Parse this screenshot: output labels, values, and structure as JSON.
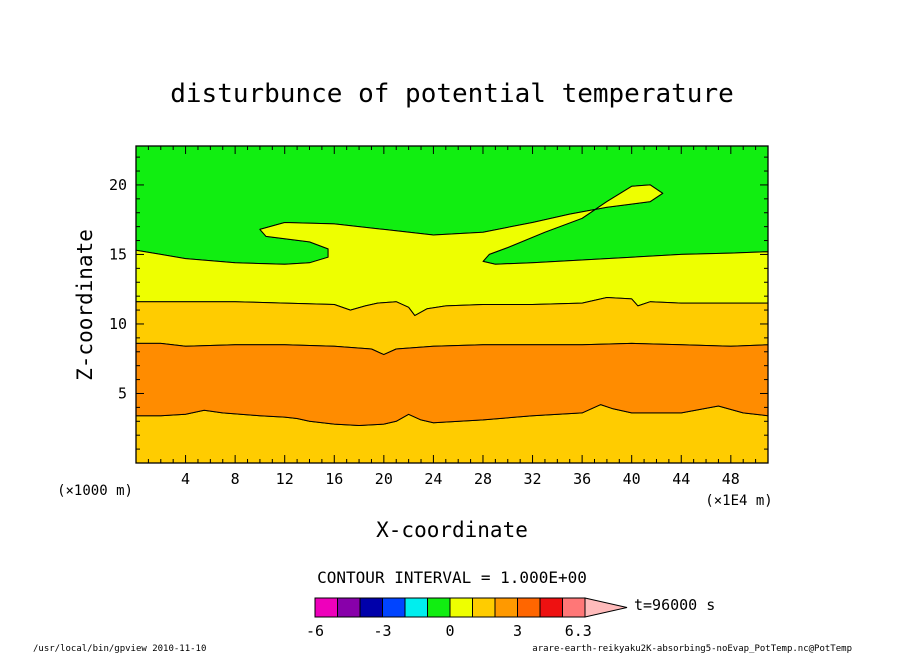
{
  "chart_data": {
    "type": "contour",
    "title": "disturbunce of potential temperature",
    "xlabel": "X-coordinate",
    "ylabel": "Z-coordinate",
    "x_unit_left": "(×1000 m)",
    "x_unit_right": "(×1E4 m)",
    "xlim": [
      0,
      51
    ],
    "ylim": [
      0,
      22.8
    ],
    "x_ticks": [
      4,
      8,
      12,
      16,
      20,
      24,
      28,
      32,
      36,
      40,
      44,
      48
    ],
    "y_ticks": [
      5,
      10,
      15,
      20
    ],
    "contour_interval": "CONTOUR INTERVAL = 1.000E+00",
    "time_label": "t=96000 s",
    "regions": [
      {
        "level_range": [
          -1,
          0
        ],
        "color": "#11ee11",
        "boundary": [
          [
            0,
            22.8
          ],
          [
            51,
            22.8
          ],
          [
            51,
            15.2
          ],
          [
            48,
            15.1
          ],
          [
            44,
            15.0
          ],
          [
            40,
            14.8
          ],
          [
            36,
            14.6
          ],
          [
            32,
            14.4
          ],
          [
            29,
            14.3
          ],
          [
            28,
            14.5
          ],
          [
            28.5,
            15.0
          ],
          [
            30,
            15.5
          ],
          [
            33,
            16.6
          ],
          [
            36,
            17.6
          ],
          [
            38,
            18.8
          ],
          [
            40,
            19.9
          ],
          [
            41.5,
            20.0
          ],
          [
            42.5,
            19.4
          ],
          [
            41.5,
            18.8
          ],
          [
            38,
            18.4
          ],
          [
            35,
            17.9
          ],
          [
            32,
            17.3
          ],
          [
            28,
            16.6
          ],
          [
            24,
            16.4
          ],
          [
            20,
            16.8
          ],
          [
            16,
            17.2
          ],
          [
            12,
            17.3
          ],
          [
            10,
            16.8
          ],
          [
            10.5,
            16.3
          ],
          [
            14,
            15.9
          ],
          [
            15.5,
            15.4
          ],
          [
            15.5,
            14.8
          ],
          [
            14,
            14.4
          ],
          [
            12,
            14.3
          ],
          [
            8,
            14.4
          ],
          [
            4,
            14.7
          ],
          [
            2,
            15.0
          ],
          [
            0,
            15.3
          ]
        ]
      },
      {
        "level_range": [
          0,
          1
        ],
        "color": "#eeff00",
        "boundary": [
          [
            0,
            15.3
          ],
          [
            2,
            15.0
          ],
          [
            4,
            14.7
          ],
          [
            8,
            14.4
          ],
          [
            12,
            14.3
          ],
          [
            14,
            14.4
          ],
          [
            15.5,
            14.8
          ],
          [
            15.5,
            15.4
          ],
          [
            14,
            15.9
          ],
          [
            10.5,
            16.3
          ],
          [
            10,
            16.8
          ],
          [
            12,
            17.3
          ],
          [
            16,
            17.2
          ],
          [
            20,
            16.8
          ],
          [
            24,
            16.4
          ],
          [
            28,
            16.6
          ],
          [
            32,
            17.3
          ],
          [
            35,
            17.9
          ],
          [
            38,
            18.4
          ],
          [
            41.5,
            18.8
          ],
          [
            42.5,
            19.4
          ],
          [
            41.5,
            20.0
          ],
          [
            40,
            19.9
          ],
          [
            38,
            18.8
          ],
          [
            36,
            17.6
          ],
          [
            33,
            16.6
          ],
          [
            30,
            15.5
          ],
          [
            28.5,
            15.0
          ],
          [
            28,
            14.5
          ],
          [
            29,
            14.3
          ],
          [
            32,
            14.4
          ],
          [
            36,
            14.6
          ],
          [
            40,
            14.8
          ],
          [
            44,
            15.0
          ],
          [
            48,
            15.1
          ],
          [
            51,
            15.2
          ],
          [
            51,
            11.5
          ],
          [
            48,
            11.5
          ],
          [
            44,
            11.5
          ],
          [
            41.5,
            11.6
          ],
          [
            40.5,
            11.3
          ],
          [
            40,
            11.8
          ],
          [
            38,
            11.9
          ],
          [
            36,
            11.5
          ],
          [
            32,
            11.4
          ],
          [
            28,
            11.4
          ],
          [
            25,
            11.3
          ],
          [
            23.5,
            11.1
          ],
          [
            22.5,
            10.6
          ],
          [
            22,
            11.2
          ],
          [
            21,
            11.6
          ],
          [
            19.5,
            11.5
          ],
          [
            18.5,
            11.3
          ],
          [
            17.3,
            11.0
          ],
          [
            16,
            11.4
          ],
          [
            12,
            11.5
          ],
          [
            8,
            11.6
          ],
          [
            4,
            11.6
          ],
          [
            0,
            11.6
          ]
        ]
      },
      {
        "level_range": [
          1,
          2
        ],
        "color": "#ffcc00",
        "boundary": [
          [
            0,
            11.6
          ],
          [
            4,
            11.6
          ],
          [
            8,
            11.6
          ],
          [
            12,
            11.5
          ],
          [
            16,
            11.4
          ],
          [
            17.3,
            11.0
          ],
          [
            18.5,
            11.3
          ],
          [
            19.5,
            11.5
          ],
          [
            21,
            11.6
          ],
          [
            22,
            11.2
          ],
          [
            22.5,
            10.6
          ],
          [
            23.5,
            11.1
          ],
          [
            25,
            11.3
          ],
          [
            28,
            11.4
          ],
          [
            32,
            11.4
          ],
          [
            36,
            11.5
          ],
          [
            38,
            11.9
          ],
          [
            40,
            11.8
          ],
          [
            40.5,
            11.3
          ],
          [
            41.5,
            11.6
          ],
          [
            44,
            11.5
          ],
          [
            48,
            11.5
          ],
          [
            51,
            11.5
          ],
          [
            51,
            8.5
          ],
          [
            48,
            8.4
          ],
          [
            44,
            8.5
          ],
          [
            40,
            8.6
          ],
          [
            36,
            8.5
          ],
          [
            32,
            8.5
          ],
          [
            28,
            8.5
          ],
          [
            24,
            8.4
          ],
          [
            21,
            8.2
          ],
          [
            20,
            7.8
          ],
          [
            19,
            8.2
          ],
          [
            16,
            8.4
          ],
          [
            12,
            8.5
          ],
          [
            8,
            8.5
          ],
          [
            4,
            8.4
          ],
          [
            2,
            8.6
          ],
          [
            0,
            8.6
          ],
          [
            0,
            3.4
          ],
          [
            2,
            3.4
          ],
          [
            4,
            3.5
          ],
          [
            5.5,
            3.8
          ],
          [
            7,
            3.6
          ],
          [
            10,
            3.4
          ],
          [
            12,
            3.3
          ],
          [
            13,
            3.2
          ],
          [
            14,
            3.0
          ],
          [
            16,
            2.8
          ],
          [
            18,
            2.7
          ],
          [
            20,
            2.8
          ],
          [
            21,
            3.0
          ],
          [
            22,
            3.5
          ],
          [
            23,
            3.1
          ],
          [
            24,
            2.9
          ],
          [
            28,
            3.1
          ],
          [
            32,
            3.4
          ],
          [
            36,
            3.6
          ],
          [
            37.5,
            4.2
          ],
          [
            38.5,
            3.9
          ],
          [
            40,
            3.6
          ],
          [
            44,
            3.6
          ],
          [
            47,
            4.1
          ],
          [
            49,
            3.6
          ],
          [
            51,
            3.4
          ],
          [
            51,
            0
          ],
          [
            0,
            0
          ]
        ]
      },
      {
        "level_range": [
          2,
          3
        ],
        "color": "#ff8c00",
        "boundary": [
          [
            0,
            8.6
          ],
          [
            2,
            8.6
          ],
          [
            4,
            8.4
          ],
          [
            8,
            8.5
          ],
          [
            12,
            8.5
          ],
          [
            16,
            8.4
          ],
          [
            19,
            8.2
          ],
          [
            20,
            7.8
          ],
          [
            21,
            8.2
          ],
          [
            24,
            8.4
          ],
          [
            28,
            8.5
          ],
          [
            32,
            8.5
          ],
          [
            36,
            8.5
          ],
          [
            40,
            8.6
          ],
          [
            44,
            8.5
          ],
          [
            48,
            8.4
          ],
          [
            51,
            8.5
          ],
          [
            51,
            3.4
          ],
          [
            49,
            3.6
          ],
          [
            47,
            4.1
          ],
          [
            44,
            3.6
          ],
          [
            40,
            3.6
          ],
          [
            38.5,
            3.9
          ],
          [
            37.5,
            4.2
          ],
          [
            36,
            3.6
          ],
          [
            32,
            3.4
          ],
          [
            28,
            3.1
          ],
          [
            24,
            2.9
          ],
          [
            23,
            3.1
          ],
          [
            22,
            3.5
          ],
          [
            21,
            3.0
          ],
          [
            20,
            2.8
          ],
          [
            18,
            2.7
          ],
          [
            16,
            2.8
          ],
          [
            14,
            3.0
          ],
          [
            13,
            3.2
          ],
          [
            12,
            3.3
          ],
          [
            10,
            3.4
          ],
          [
            7,
            3.6
          ],
          [
            5.5,
            3.8
          ],
          [
            4,
            3.5
          ],
          [
            2,
            3.4
          ],
          [
            0,
            3.4
          ]
        ]
      }
    ],
    "colorbar": {
      "colors": [
        "#ee00bb",
        "#8800aa",
        "#0000aa",
        "#0044ff",
        "#00eeee",
        "#11ee11",
        "#eeff00",
        "#ffcc00",
        "#ff9900",
        "#ff6600",
        "#ee1111",
        "#ff7777",
        "#ffbbbb"
      ],
      "tick_labels": [
        "-6",
        "-3",
        "0",
        "3",
        "6.3"
      ]
    },
    "footer_left": "/usr/local/bin/gpview  2010-11-10",
    "footer_right": "arare-earth-reikyaku2K-absorbing5-noEvap_PotTemp.nc@PotTemp"
  }
}
